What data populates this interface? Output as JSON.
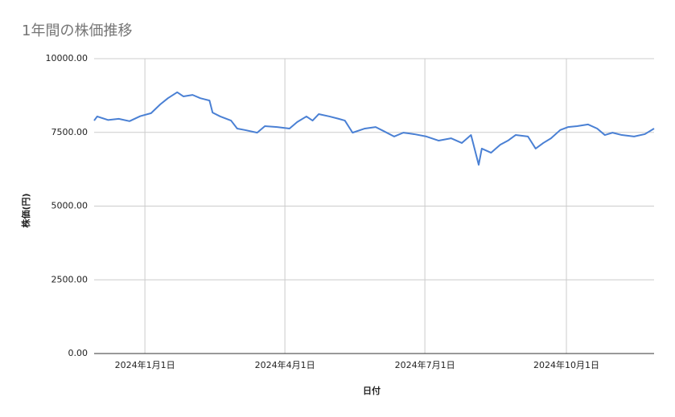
{
  "chart_data": {
    "type": "line",
    "title": "1年間の株価推移",
    "x_label": "日付",
    "y_label": "株価(円)",
    "x": [
      "2023-11-29",
      "2023-12-01",
      "2023-12-08",
      "2023-12-15",
      "2023-12-22",
      "2023-12-29",
      "2024-01-05",
      "2024-01-11",
      "2024-01-16",
      "2024-01-22",
      "2024-01-26",
      "2024-02-01",
      "2024-02-06",
      "2024-02-12",
      "2024-02-14",
      "2024-02-19",
      "2024-02-26",
      "2024-03-01",
      "2024-03-06",
      "2024-03-14",
      "2024-03-19",
      "2024-03-27",
      "2024-04-04",
      "2024-04-09",
      "2024-04-15",
      "2024-04-19",
      "2024-04-23",
      "2024-04-30",
      "2024-05-06",
      "2024-05-10",
      "2024-05-15",
      "2024-05-23",
      "2024-05-30",
      "2024-06-04",
      "2024-06-11",
      "2024-06-17",
      "2024-06-24",
      "2024-07-02",
      "2024-07-10",
      "2024-07-18",
      "2024-07-25",
      "2024-07-31",
      "2024-08-05",
      "2024-08-07",
      "2024-08-13",
      "2024-08-19",
      "2024-08-24",
      "2024-08-29",
      "2024-09-06",
      "2024-09-11",
      "2024-09-16",
      "2024-09-21",
      "2024-09-27",
      "2024-10-02",
      "2024-10-08",
      "2024-10-15",
      "2024-10-21",
      "2024-10-26",
      "2024-10-31",
      "2024-11-06",
      "2024-11-14",
      "2024-11-21",
      "2024-11-27"
    ],
    "values": [
      7900,
      8040,
      7920,
      7960,
      7880,
      8050,
      8150,
      8450,
      8660,
      8860,
      8720,
      8770,
      8660,
      8580,
      8170,
      8040,
      7900,
      7630,
      7580,
      7490,
      7710,
      7680,
      7630,
      7850,
      8040,
      7900,
      8120,
      8040,
      7960,
      7900,
      7490,
      7630,
      7680,
      7550,
      7360,
      7490,
      7440,
      7360,
      7220,
      7300,
      7140,
      7410,
      6400,
      6950,
      6810,
      7080,
      7220,
      7410,
      7360,
      6950,
      7140,
      7300,
      7580,
      7680,
      7710,
      7770,
      7630,
      7410,
      7490,
      7410,
      7360,
      7440,
      7630
    ],
    "color": "#4a80d4",
    "xlim": [
      "2023-11-29",
      "2024-11-27"
    ],
    "xticks": [
      {
        "value": "2024-01-01",
        "label": "2024年1月1日"
      },
      {
        "value": "2024-04-01",
        "label": "2024年4月1日"
      },
      {
        "value": "2024-07-01",
        "label": "2024年7月1日"
      },
      {
        "value": "2024-10-01",
        "label": "2024年10月1日"
      }
    ],
    "ylim": [
      0,
      10000
    ],
    "yticks": [
      {
        "value": 0,
        "label": "0.00"
      },
      {
        "value": 2500,
        "label": "2500.00"
      },
      {
        "value": 5000,
        "label": "5000.00"
      },
      {
        "value": 7500,
        "label": "7500.00"
      },
      {
        "value": 10000,
        "label": "10000.00"
      }
    ],
    "grid": true
  }
}
